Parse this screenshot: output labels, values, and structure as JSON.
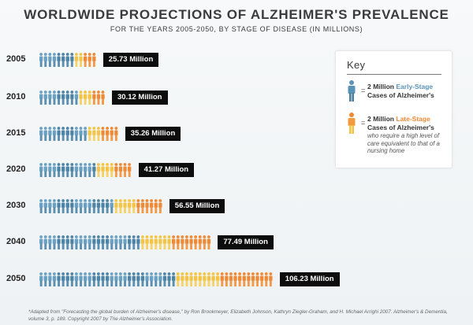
{
  "chart_data": {
    "type": "bar",
    "title": "WORLDWIDE PROJECTIONS OF ALZHEIMER'S PREVALENCE",
    "subtitle": "FOR THE YEARS 2005-2050, BY STAGE OF DISEASE (IN MILLIONS)",
    "categories": [
      "2005",
      "2010",
      "2015",
      "2020",
      "2030",
      "2040",
      "2050"
    ],
    "series": [
      {
        "name": "Early-Stage",
        "values": [
          16.29,
          18.71,
          21.57,
          25.27,
          34.02,
          45.67,
          62.32
        ]
      },
      {
        "name": "Late-Stage",
        "values": [
          9.44,
          11.41,
          13.69,
          16.0,
          22.53,
          31.82,
          43.91
        ]
      }
    ],
    "totals": [
      25.73,
      30.12,
      35.26,
      41.27,
      56.55,
      77.49,
      106.23
    ],
    "total_labels": [
      "25.73 Million",
      "30.12 Million",
      "35.26 Million",
      "41.27 Million",
      "56.55 Million",
      "77.49 Million",
      "106.23 Million"
    ],
    "unit": "Million",
    "icon_value": 2,
    "colors": {
      "early": "#5b93b8",
      "early_alt": "#4a7f9e",
      "late": "#ee8a35",
      "late_alt": "#f5c342"
    }
  },
  "key": {
    "title": "Key",
    "equals": "=",
    "early_amount": "2 Million",
    "early_stage": "Early-Stage",
    "early_cases": "Cases of Alzheimer's",
    "late_amount": "2 Million",
    "late_stage": "Late-Stage",
    "late_cases": "Cases of Alzheimer's",
    "late_description": "who require a high level of care equivalent to that of a nursing home"
  },
  "source": "*Adapted from \"Forecasting the global burden of Alzheimer's disease,\" by Ron Brookmeyer, Elizabeth Johnson, Kathryn Ziegler-Graham, and H. Michael Arrighi 2007. Alzheimer's & Dementia, volume 3, p. 189. Copyright 2007 by The Alzheimer's Association."
}
